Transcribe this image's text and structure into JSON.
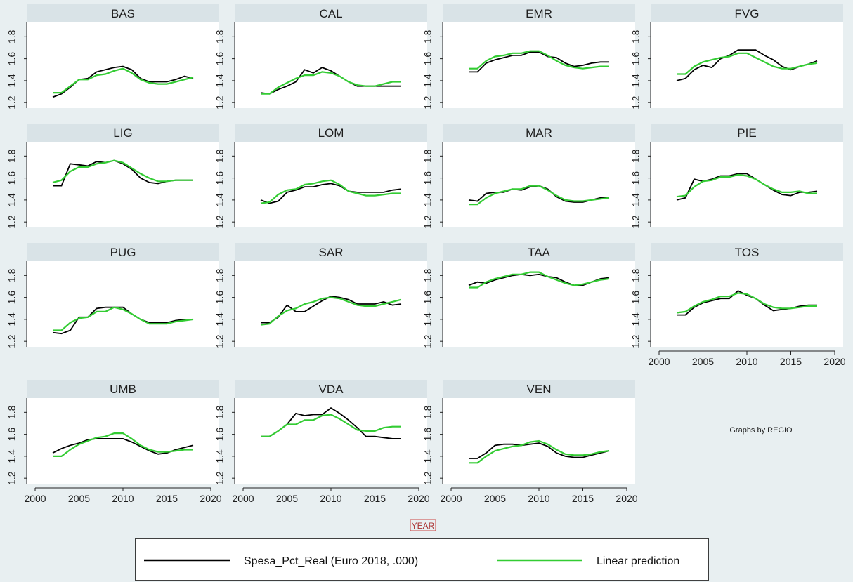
{
  "chart_data": {
    "type": "line",
    "layout": "small-multiples",
    "x": [
      2002,
      2003,
      2004,
      2005,
      2006,
      2007,
      2008,
      2009,
      2010,
      2011,
      2012,
      2013,
      2014,
      2015,
      2016,
      2017,
      2018
    ],
    "xlim": [
      2000,
      2020
    ],
    "xticks": [
      "2000",
      "2005",
      "2010",
      "2015",
      "2020"
    ],
    "ylim": [
      1.15,
      1.93
    ],
    "yticks": [
      "1.2",
      "1.4",
      "1.6",
      "1.8"
    ],
    "xlabel": "YEAR",
    "note": "Graphs by REGIO",
    "series_names": [
      "Spesa_Pct_Real (Euro 2018, .000)",
      "Linear prediction"
    ],
    "series_colors": [
      "#000000",
      "#33cc33"
    ],
    "legend_position": "bottom",
    "panels": [
      {
        "name": "BAS",
        "actual": [
          1.25,
          1.28,
          1.34,
          1.41,
          1.42,
          1.48,
          1.5,
          1.52,
          1.53,
          1.5,
          1.42,
          1.39,
          1.39,
          1.39,
          1.41,
          1.44,
          1.42
        ],
        "predicted": [
          1.29,
          1.29,
          1.35,
          1.41,
          1.41,
          1.45,
          1.46,
          1.49,
          1.51,
          1.47,
          1.41,
          1.38,
          1.37,
          1.37,
          1.39,
          1.41,
          1.43
        ]
      },
      {
        "name": "CAL",
        "actual": [
          1.29,
          1.28,
          1.32,
          1.35,
          1.39,
          1.5,
          1.47,
          1.52,
          1.49,
          1.44,
          1.39,
          1.35,
          1.35,
          1.35,
          1.35,
          1.35,
          1.35
        ],
        "predicted": [
          1.28,
          1.28,
          1.34,
          1.38,
          1.42,
          1.45,
          1.45,
          1.48,
          1.47,
          1.44,
          1.39,
          1.36,
          1.35,
          1.35,
          1.37,
          1.39,
          1.39
        ]
      },
      {
        "name": "EMR",
        "actual": [
          1.48,
          1.48,
          1.56,
          1.59,
          1.61,
          1.63,
          1.63,
          1.66,
          1.66,
          1.62,
          1.61,
          1.56,
          1.53,
          1.54,
          1.56,
          1.57,
          1.57
        ],
        "predicted": [
          1.51,
          1.51,
          1.58,
          1.62,
          1.63,
          1.65,
          1.65,
          1.67,
          1.67,
          1.63,
          1.58,
          1.54,
          1.52,
          1.51,
          1.52,
          1.53,
          1.53
        ]
      },
      {
        "name": "FVG",
        "actual": [
          1.4,
          1.42,
          1.5,
          1.54,
          1.52,
          1.6,
          1.63,
          1.68,
          1.68,
          1.68,
          1.63,
          1.59,
          1.53,
          1.5,
          1.53,
          1.55,
          1.58
        ],
        "predicted": [
          1.46,
          1.46,
          1.53,
          1.57,
          1.59,
          1.61,
          1.62,
          1.65,
          1.65,
          1.61,
          1.57,
          1.53,
          1.51,
          1.51,
          1.53,
          1.55,
          1.56
        ]
      },
      {
        "name": "LIG",
        "actual": [
          1.53,
          1.53,
          1.73,
          1.72,
          1.71,
          1.75,
          1.74,
          1.76,
          1.73,
          1.68,
          1.6,
          1.56,
          1.55,
          1.57,
          1.58,
          1.58,
          1.58
        ],
        "predicted": [
          1.56,
          1.58,
          1.66,
          1.7,
          1.7,
          1.73,
          1.74,
          1.76,
          1.74,
          1.69,
          1.64,
          1.6,
          1.57,
          1.57,
          1.58,
          1.58,
          1.58
        ]
      },
      {
        "name": "LOM",
        "actual": [
          1.4,
          1.37,
          1.39,
          1.47,
          1.49,
          1.52,
          1.52,
          1.54,
          1.55,
          1.53,
          1.48,
          1.47,
          1.47,
          1.47,
          1.47,
          1.49,
          1.5
        ],
        "predicted": [
          1.37,
          1.38,
          1.45,
          1.49,
          1.5,
          1.54,
          1.55,
          1.57,
          1.58,
          1.54,
          1.48,
          1.46,
          1.44,
          1.44,
          1.45,
          1.46,
          1.46
        ]
      },
      {
        "name": "MAR",
        "actual": [
          1.4,
          1.39,
          1.46,
          1.47,
          1.47,
          1.5,
          1.49,
          1.52,
          1.53,
          1.5,
          1.43,
          1.39,
          1.38,
          1.38,
          1.4,
          1.42,
          1.42
        ],
        "predicted": [
          1.36,
          1.36,
          1.42,
          1.46,
          1.48,
          1.5,
          1.5,
          1.53,
          1.53,
          1.49,
          1.44,
          1.4,
          1.39,
          1.39,
          1.4,
          1.41,
          1.42
        ]
      },
      {
        "name": "PIE",
        "actual": [
          1.4,
          1.42,
          1.59,
          1.57,
          1.59,
          1.62,
          1.62,
          1.64,
          1.64,
          1.59,
          1.54,
          1.49,
          1.45,
          1.44,
          1.47,
          1.47,
          1.48
        ],
        "predicted": [
          1.43,
          1.44,
          1.52,
          1.57,
          1.58,
          1.61,
          1.61,
          1.63,
          1.62,
          1.59,
          1.54,
          1.5,
          1.47,
          1.47,
          1.48,
          1.46,
          1.46
        ]
      },
      {
        "name": "PUG",
        "actual": [
          1.28,
          1.27,
          1.3,
          1.42,
          1.42,
          1.5,
          1.51,
          1.51,
          1.51,
          1.45,
          1.4,
          1.37,
          1.37,
          1.37,
          1.39,
          1.4,
          1.4
        ],
        "predicted": [
          1.3,
          1.3,
          1.37,
          1.41,
          1.42,
          1.47,
          1.47,
          1.51,
          1.49,
          1.45,
          1.4,
          1.36,
          1.36,
          1.36,
          1.38,
          1.39,
          1.4
        ]
      },
      {
        "name": "SAR",
        "actual": [
          1.37,
          1.37,
          1.42,
          1.53,
          1.47,
          1.47,
          1.52,
          1.57,
          1.61,
          1.6,
          1.58,
          1.54,
          1.54,
          1.54,
          1.56,
          1.53,
          1.54
        ],
        "predicted": [
          1.35,
          1.36,
          1.43,
          1.48,
          1.5,
          1.54,
          1.56,
          1.59,
          1.6,
          1.59,
          1.56,
          1.53,
          1.52,
          1.52,
          1.54,
          1.56,
          1.58
        ]
      },
      {
        "name": "TAA",
        "actual": [
          1.71,
          1.74,
          1.73,
          1.76,
          1.78,
          1.8,
          1.81,
          1.8,
          1.81,
          1.79,
          1.78,
          1.74,
          1.71,
          1.71,
          1.74,
          1.77,
          1.78
        ],
        "predicted": [
          1.69,
          1.69,
          1.74,
          1.77,
          1.79,
          1.81,
          1.81,
          1.83,
          1.83,
          1.79,
          1.76,
          1.73,
          1.71,
          1.72,
          1.74,
          1.76,
          1.77
        ]
      },
      {
        "name": "TOS",
        "actual": [
          1.44,
          1.44,
          1.51,
          1.55,
          1.57,
          1.59,
          1.59,
          1.66,
          1.62,
          1.59,
          1.53,
          1.48,
          1.49,
          1.5,
          1.52,
          1.53,
          1.53
        ],
        "predicted": [
          1.46,
          1.47,
          1.52,
          1.56,
          1.58,
          1.61,
          1.61,
          1.64,
          1.63,
          1.59,
          1.54,
          1.51,
          1.5,
          1.5,
          1.51,
          1.52,
          1.52
        ]
      },
      {
        "name": "UMB",
        "actual": [
          1.43,
          1.47,
          1.5,
          1.52,
          1.55,
          1.56,
          1.56,
          1.56,
          1.56,
          1.53,
          1.49,
          1.45,
          1.42,
          1.43,
          1.46,
          1.48,
          1.5
        ],
        "predicted": [
          1.4,
          1.4,
          1.46,
          1.51,
          1.54,
          1.57,
          1.58,
          1.61,
          1.61,
          1.56,
          1.5,
          1.46,
          1.44,
          1.44,
          1.45,
          1.46,
          1.46
        ]
      },
      {
        "name": "VDA",
        "actual": [
          1.58,
          1.58,
          1.63,
          1.69,
          1.79,
          1.77,
          1.78,
          1.78,
          1.84,
          1.79,
          1.73,
          1.66,
          1.58,
          1.58,
          1.57,
          1.56,
          1.56
        ],
        "predicted": [
          1.58,
          1.58,
          1.63,
          1.69,
          1.69,
          1.73,
          1.73,
          1.77,
          1.78,
          1.74,
          1.69,
          1.64,
          1.63,
          1.63,
          1.66,
          1.67,
          1.67
        ]
      },
      {
        "name": "VEN",
        "actual": [
          1.38,
          1.38,
          1.43,
          1.5,
          1.51,
          1.51,
          1.5,
          1.51,
          1.52,
          1.49,
          1.43,
          1.4,
          1.39,
          1.39,
          1.41,
          1.43,
          1.45
        ],
        "predicted": [
          1.34,
          1.34,
          1.4,
          1.45,
          1.47,
          1.49,
          1.5,
          1.53,
          1.54,
          1.51,
          1.46,
          1.42,
          1.41,
          1.41,
          1.42,
          1.44,
          1.45
        ]
      }
    ]
  }
}
